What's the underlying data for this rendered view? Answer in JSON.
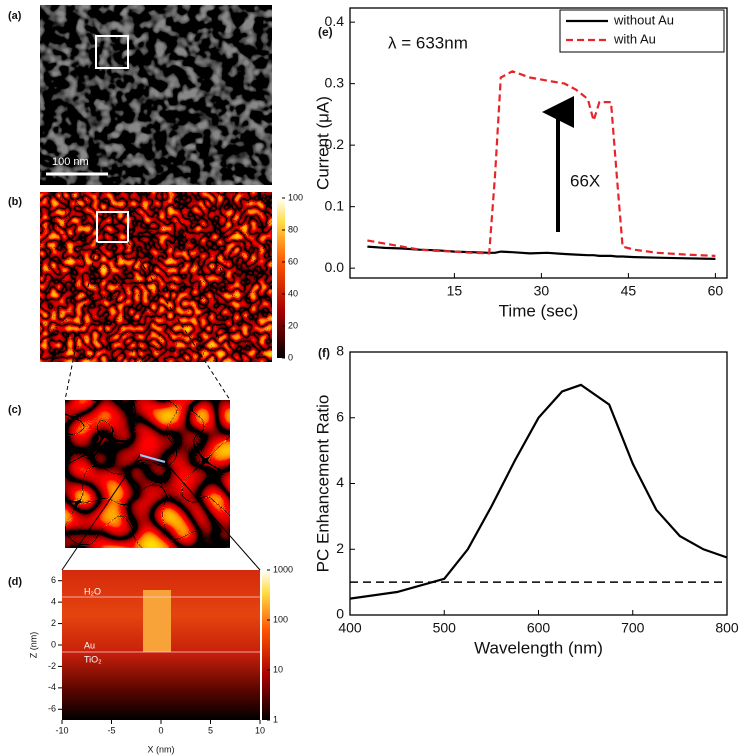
{
  "chart_data": [
    {
      "type": "line",
      "panel": "(e)",
      "annotation": "λ = 633nm",
      "arrow_label": "66X",
      "xlabel": "Time (sec)",
      "ylabel": "Current (μA)",
      "x": [
        0,
        3,
        6,
        9,
        12,
        15,
        18,
        21,
        22,
        23,
        25,
        28,
        31,
        34,
        36,
        38,
        39,
        40,
        42,
        43,
        44,
        46,
        50,
        55,
        60
      ],
      "series": [
        {
          "name": "without Au",
          "color": "#000000",
          "dash": false,
          "values": [
            0.035,
            0.033,
            0.032,
            0.03,
            0.029,
            0.027,
            0.026,
            0.025,
            0.025,
            0.027,
            0.026,
            0.024,
            0.025,
            0.023,
            0.022,
            0.021,
            0.021,
            0.02,
            0.02,
            0.019,
            0.019,
            0.018,
            0.017,
            0.016,
            0.015
          ]
        },
        {
          "name": "with Au",
          "color": "#e8232a",
          "dash": true,
          "values": [
            0.045,
            0.04,
            0.035,
            0.03,
            0.028,
            0.027,
            0.025,
            0.024,
            0.15,
            0.31,
            0.32,
            0.31,
            0.305,
            0.3,
            0.29,
            0.275,
            0.24,
            0.27,
            0.27,
            0.15,
            0.035,
            0.03,
            0.025,
            0.022,
            0.02
          ]
        }
      ],
      "xlim": [
        -3,
        62
      ],
      "xticks": [
        15,
        30,
        45,
        60
      ],
      "ylim": [
        -0.016,
        0.423
      ],
      "yticks": [
        {
          "value": 0,
          "label": "0.0"
        },
        0.1,
        0.2,
        0.3,
        0.4
      ],
      "legend": "upper right"
    },
    {
      "type": "line",
      "panel": "(f)",
      "xlabel": "Wavelength (nm)",
      "ylabel": "PC Enhancement Ratio",
      "x": [
        400,
        450,
        500,
        525,
        550,
        575,
        600,
        625,
        645,
        675,
        700,
        725,
        750,
        775,
        800
      ],
      "series": [
        {
          "name": "PC enhancement",
          "color": "#000000",
          "dash": false,
          "values": [
            0.5,
            0.7,
            1.1,
            2,
            3.3,
            4.7,
            6,
            6.8,
            7.0,
            6.4,
            4.6,
            3.2,
            2.4,
            2.0,
            1.75
          ]
        }
      ],
      "hline": 1,
      "xlim": [
        400,
        800
      ],
      "xticks": [
        400,
        500,
        600,
        700,
        800
      ],
      "ylim": [
        0,
        8
      ],
      "yticks": [
        0,
        2,
        4,
        6,
        8
      ]
    }
  ],
  "panels": {
    "a": {
      "label": "(a)",
      "scale_bar": "100 nm"
    },
    "b": {
      "label": "(b)",
      "colorbar_lim": [
        0,
        100
      ],
      "colorbar_ticks": [
        0,
        20,
        40,
        60,
        80,
        100
      ]
    },
    "c": {
      "label": "(c)"
    },
    "d": {
      "label": "(d)",
      "colorbar_lim": [
        1,
        1000
      ],
      "colorbar_ticks": [
        1,
        10,
        100,
        1000
      ],
      "xlabel": "X (nm)",
      "ylabel": "Z (nm)",
      "xlim": [
        -10,
        10
      ],
      "ylim": [
        -7,
        7
      ],
      "xticks": [
        -10,
        -5,
        0,
        5,
        10
      ],
      "yticks": [
        -6,
        -4,
        -2,
        0,
        2,
        4,
        6
      ],
      "layers": [
        "H₂O",
        "Au",
        "TiO₂"
      ]
    }
  }
}
